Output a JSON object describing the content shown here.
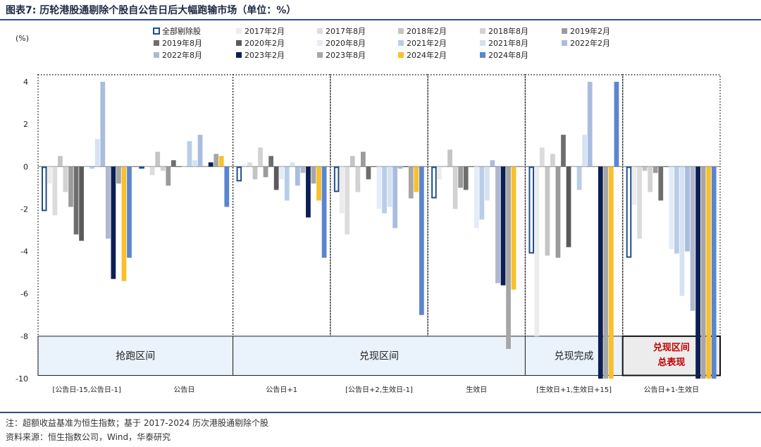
{
  "title": "图表7: 历轮港股通剔除个股自公告日后大幅跑输市场（单位：%）",
  "notes": {
    "line1": "注：超额收益基准为恒生指数；基于 2017-2024 历次港股通剔除个股",
    "line2": "资料来源：恒生指数公司，Wind，华泰研究"
  },
  "chart_data": {
    "type": "bar",
    "ylabel": "(%)",
    "ylim": [
      -10,
      4
    ],
    "yticks": [
      4,
      2,
      0,
      -2,
      -4,
      -6,
      -8,
      -10
    ],
    "categories": [
      "[公告日-15,公告日-1]",
      "公告日",
      "公告日+1",
      "[公告日+2,生效日-1]",
      "生效日",
      "[生效日+1,生效日+15]",
      "公告日+1-生效日"
    ],
    "zones": [
      "抢跑区间",
      "兑现区间",
      "兑现完成"
    ],
    "highlight_zone": {
      "line1": "兑现区间",
      "line2": "总表现"
    },
    "series": [
      {
        "name": "全部剔除股",
        "color": "#1f4e8c",
        "hollow": true,
        "values": [
          -2.1,
          -0.1,
          -0.7,
          -1.2,
          -1.5,
          -4.1,
          -4.3
        ]
      },
      {
        "name": "2017年2月",
        "color": "#ececec",
        "values": [
          -0.8,
          0.0,
          0.1,
          -2.2,
          -0.6,
          -8.0,
          -1.8
        ]
      },
      {
        "name": "2017年8月",
        "color": "#dcdcdc",
        "values": [
          -2.3,
          -0.4,
          0.2,
          -3.2,
          0.0,
          0.9,
          -3.4
        ]
      },
      {
        "name": "2018年2月",
        "color": "#c4c4c4",
        "values": [
          0.5,
          0.7,
          -0.6,
          0.5,
          0.8,
          -4.2,
          -0.2
        ]
      },
      {
        "name": "2018年8月",
        "color": "#d2d2d2",
        "values": [
          -1.2,
          -0.2,
          0.9,
          -1.2,
          -2.0,
          0.6,
          -1.2
        ]
      },
      {
        "name": "2019年2月",
        "color": "#9b9b9b",
        "values": [
          -1.9,
          -0.9,
          -0.5,
          0.7,
          -1.0,
          -4.3,
          -0.3
        ]
      },
      {
        "name": "2019年8月",
        "color": "#6e6e6e",
        "values": [
          -3.2,
          0.3,
          0.5,
          -0.6,
          -1.1,
          1.5,
          -1.6
        ]
      },
      {
        "name": "2020年2月",
        "color": "#5a5a5a",
        "values": [
          -3.5,
          0.0,
          -1.1,
          0.0,
          0.0,
          -3.8,
          0.0
        ]
      },
      {
        "name": "2020年8月",
        "color": "#e3ecf7",
        "values": [
          0.0,
          0.0,
          -0.6,
          -2.0,
          -2.9,
          0.0,
          -3.9
        ]
      },
      {
        "name": "2021年2月",
        "color": "#b9cde8",
        "values": [
          -0.1,
          1.2,
          -1.6,
          -2.2,
          -2.5,
          -1.1,
          -4.1
        ]
      },
      {
        "name": "2021年8月",
        "color": "#d5e2f3",
        "values": [
          1.3,
          0.3,
          0.2,
          -1.9,
          -1.6,
          1.5,
          -6.1
        ]
      },
      {
        "name": "2022年2月",
        "color": "#a9bce0",
        "values": [
          4.0,
          1.5,
          -0.9,
          -2.9,
          0.3,
          4.0,
          -4.0
        ]
      },
      {
        "name": "2022年8月",
        "color": "#b0b8cf",
        "values": [
          -3.4,
          0.0,
          -0.3,
          -0.1,
          -5.5,
          0.0,
          -6.8
        ]
      },
      {
        "name": "2023年2月",
        "color": "#0b1f55",
        "values": [
          -5.3,
          0.2,
          -2.4,
          0.0,
          -5.6,
          -10.0,
          -10.0
        ]
      },
      {
        "name": "2023年8月",
        "color": "#a6a6a6",
        "values": [
          -0.8,
          0.6,
          -0.8,
          -1.5,
          -8.6,
          -10.0,
          -10.0
        ]
      },
      {
        "name": "2024年2月",
        "color": "#f8c02b",
        "values": [
          -5.4,
          0.5,
          -1.6,
          -1.2,
          -5.8,
          -10.0,
          -10.0
        ]
      },
      {
        "name": "2024年8月",
        "color": "#5b85d0",
        "values": [
          -4.3,
          -1.9,
          -4.3,
          -7.0,
          0.0,
          4.0,
          -10.0
        ]
      }
    ]
  }
}
